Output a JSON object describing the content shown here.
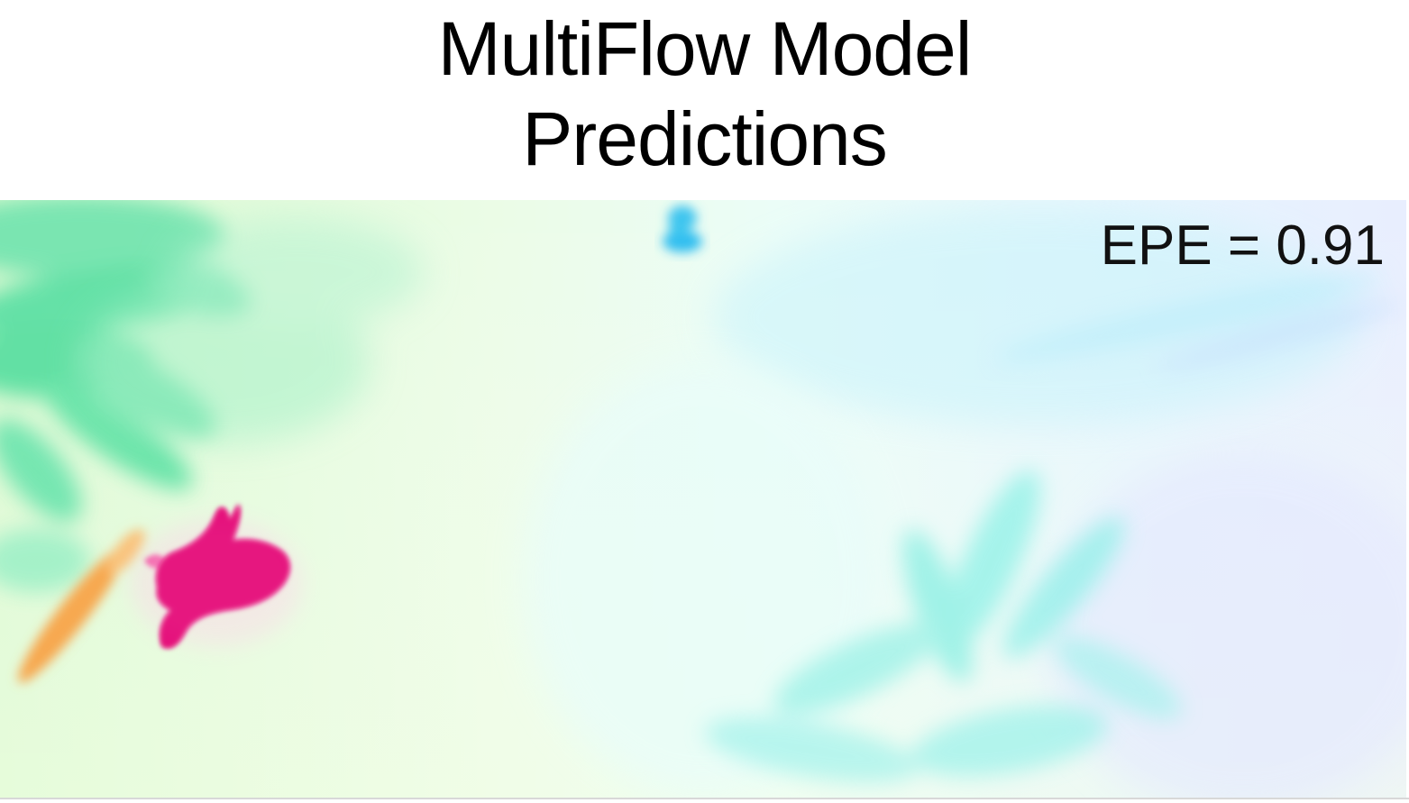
{
  "title": {
    "line1": "MultiFlow Model",
    "line2": "Predictions"
  },
  "image": {
    "description_tag": "optical-flow-visualization",
    "metric_label": "EPE = 0.91",
    "colors": {
      "background_left": "#e8fbd8",
      "background_center": "#eefcf3",
      "background_right": "#e6f2ff",
      "foliage_green": "#5ee0a2",
      "foliage_cyan": "#7deee0",
      "bird_magenta": "#e8117a",
      "streak_orange": "#f5a040",
      "blob_blue": "#3cc4ef"
    }
  }
}
